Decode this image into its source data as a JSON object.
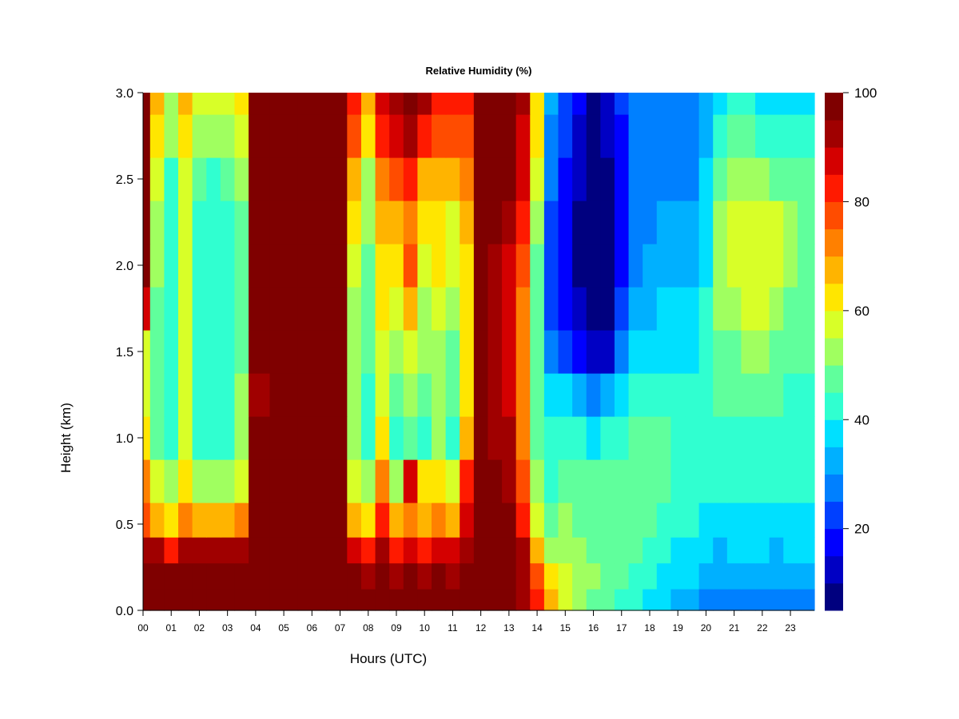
{
  "chart_data": {
    "type": "heatmap",
    "title": "Relative Humidity (%)",
    "xlabel": "Hours (UTC)",
    "ylabel": "Height (km)",
    "xlim": [
      0,
      23.85
    ],
    "ylim": [
      0,
      3.0
    ],
    "x_ticks": [
      "00",
      "01",
      "02",
      "03",
      "04",
      "05",
      "06",
      "07",
      "08",
      "09",
      "10",
      "11",
      "12",
      "13",
      "14",
      "15",
      "16",
      "17",
      "18",
      "19",
      "20",
      "21",
      "22",
      "23"
    ],
    "y_ticks": [
      "0.0",
      "0.5",
      "1.0",
      "1.5",
      "2.0",
      "2.5",
      "3.0"
    ],
    "colorbar": {
      "range": [
        5,
        100
      ],
      "ticks": [
        "20",
        "40",
        "60",
        "80",
        "100"
      ],
      "tick_values": [
        20,
        40,
        60,
        80,
        100
      ],
      "levels": [
        5,
        10,
        15,
        20,
        25,
        30,
        35,
        40,
        45,
        50,
        55,
        60,
        65,
        70,
        75,
        80,
        85,
        90,
        95,
        100
      ],
      "colors": [
        "#00007f",
        "#0000c4",
        "#0000ff",
        "#0040ff",
        "#0080ff",
        "#00b0ff",
        "#00e0ff",
        "#30ffd0",
        "#60ff9c",
        "#a0ff60",
        "#d8ff28",
        "#ffe600",
        "#ffb400",
        "#ff8000",
        "#ff4c00",
        "#ff1a00",
        "#d40000",
        "#a00000",
        "#7f0000"
      ]
    },
    "heights_km": [
      0.05,
      0.2,
      0.35,
      0.5,
      0.75,
      1.0,
      1.25,
      1.5,
      1.75,
      2.0,
      2.25,
      2.5,
      2.75,
      3.0
    ],
    "hours": [
      0.0,
      0.5,
      1.0,
      1.5,
      2.0,
      2.5,
      3.0,
      3.5,
      4.0,
      5.0,
      6.0,
      7.0,
      7.5,
      8.0,
      8.5,
      9.0,
      9.5,
      10.0,
      10.5,
      11.0,
      11.5,
      12.0,
      12.5,
      13.0,
      13.5,
      14.0,
      14.5,
      15.0,
      15.5,
      16.0,
      16.5,
      17.0,
      17.5,
      18.0,
      18.5,
      19.0,
      19.5,
      20.0,
      20.5,
      21.0,
      21.5,
      22.0,
      22.5,
      23.0,
      23.5,
      23.85
    ],
    "values": [
      [
        100,
        100,
        100,
        100,
        100,
        100,
        100,
        100,
        100,
        100,
        100,
        100,
        100,
        100,
        100,
        100,
        100,
        100,
        100,
        100,
        100,
        100,
        100,
        100,
        95,
        85,
        70,
        60,
        55,
        50,
        48,
        45,
        42,
        40,
        38,
        35,
        33,
        30,
        28,
        27,
        27,
        27,
        28,
        30,
        30,
        30
      ],
      [
        100,
        100,
        98,
        100,
        100,
        100,
        100,
        100,
        100,
        100,
        100,
        100,
        100,
        95,
        100,
        95,
        100,
        95,
        100,
        95,
        100,
        100,
        100,
        100,
        95,
        80,
        65,
        60,
        55,
        52,
        50,
        48,
        45,
        42,
        40,
        38,
        36,
        33,
        32,
        33,
        34,
        34,
        33,
        33,
        33,
        33
      ],
      [
        95,
        95,
        85,
        95,
        95,
        95,
        95,
        95,
        100,
        100,
        100,
        100,
        90,
        85,
        95,
        85,
        90,
        85,
        90,
        88,
        95,
        100,
        100,
        100,
        95,
        70,
        55,
        55,
        52,
        50,
        50,
        48,
        46,
        44,
        42,
        40,
        38,
        36,
        35,
        36,
        36,
        36,
        35,
        36,
        36,
        36
      ],
      [
        80,
        70,
        65,
        75,
        70,
        70,
        70,
        75,
        100,
        100,
        100,
        100,
        70,
        65,
        85,
        70,
        75,
        70,
        75,
        70,
        90,
        100,
        100,
        98,
        85,
        60,
        50,
        52,
        50,
        50,
        50,
        48,
        48,
        46,
        45,
        43,
        42,
        40,
        40,
        40,
        40,
        40,
        40,
        40,
        40,
        40
      ],
      [
        75,
        60,
        55,
        65,
        55,
        55,
        55,
        60,
        100,
        100,
        100,
        100,
        60,
        55,
        75,
        55,
        90,
        65,
        65,
        60,
        85,
        100,
        98,
        95,
        80,
        55,
        45,
        50,
        50,
        48,
        48,
        48,
        48,
        46,
        46,
        45,
        44,
        42,
        42,
        42,
        43,
        43,
        42,
        42,
        42,
        42
      ],
      [
        65,
        50,
        45,
        60,
        45,
        45,
        45,
        55,
        100,
        100,
        98,
        98,
        55,
        45,
        65,
        45,
        50,
        42,
        55,
        42,
        70,
        100,
        95,
        92,
        75,
        50,
        42,
        45,
        44,
        40,
        42,
        45,
        46,
        46,
        46,
        45,
        45,
        44,
        44,
        44,
        45,
        45,
        44,
        44,
        44,
        44
      ],
      [
        60,
        50,
        45,
        60,
        45,
        45,
        45,
        55,
        95,
        98,
        98,
        98,
        55,
        45,
        60,
        50,
        55,
        50,
        55,
        50,
        65,
        100,
        95,
        90,
        75,
        50,
        38,
        38,
        32,
        28,
        32,
        40,
        44,
        45,
        44,
        44,
        44,
        44,
        46,
        46,
        46,
        46,
        46,
        45,
        45,
        45
      ],
      [
        60,
        48,
        45,
        60,
        45,
        45,
        45,
        50,
        100,
        100,
        100,
        100,
        55,
        48,
        60,
        55,
        60,
        52,
        55,
        50,
        65,
        100,
        92,
        88,
        75,
        50,
        30,
        25,
        18,
        12,
        15,
        28,
        38,
        40,
        40,
        40,
        40,
        42,
        48,
        50,
        52,
        52,
        50,
        48,
        46,
        46
      ],
      [
        90,
        50,
        45,
        60,
        45,
        45,
        45,
        50,
        100,
        100,
        100,
        100,
        55,
        50,
        65,
        60,
        70,
        55,
        60,
        55,
        65,
        100,
        92,
        88,
        75,
        50,
        25,
        20,
        12,
        8,
        10,
        22,
        32,
        35,
        36,
        36,
        36,
        42,
        52,
        55,
        56,
        56,
        54,
        50,
        48,
        48
      ],
      [
        100,
        55,
        45,
        60,
        45,
        45,
        45,
        50,
        100,
        100,
        100,
        100,
        60,
        50,
        65,
        65,
        80,
        60,
        65,
        58,
        65,
        100,
        95,
        90,
        80,
        50,
        25,
        18,
        10,
        8,
        10,
        18,
        30,
        32,
        34,
        34,
        34,
        40,
        55,
        58,
        58,
        58,
        56,
        52,
        50,
        50
      ],
      [
        100,
        55,
        45,
        60,
        45,
        45,
        45,
        50,
        100,
        100,
        100,
        100,
        62,
        52,
        68,
        70,
        75,
        62,
        65,
        60,
        68,
        100,
        98,
        95,
        85,
        55,
        25,
        18,
        10,
        6,
        10,
        18,
        28,
        30,
        32,
        32,
        32,
        40,
        55,
        58,
        58,
        58,
        56,
        52,
        50,
        50
      ],
      [
        100,
        60,
        45,
        60,
        48,
        45,
        48,
        55,
        100,
        100,
        100,
        100,
        70,
        55,
        72,
        80,
        85,
        70,
        70,
        68,
        72,
        100,
        100,
        100,
        90,
        60,
        28,
        20,
        12,
        6,
        10,
        18,
        28,
        30,
        30,
        30,
        30,
        38,
        50,
        52,
        52,
        52,
        50,
        48,
        46,
        46
      ],
      [
        100,
        65,
        52,
        65,
        55,
        55,
        55,
        60,
        100,
        100,
        100,
        100,
        80,
        65,
        82,
        90,
        95,
        85,
        80,
        78,
        80,
        100,
        100,
        100,
        90,
        65,
        30,
        22,
        15,
        8,
        12,
        20,
        28,
        30,
        30,
        30,
        30,
        35,
        45,
        46,
        46,
        45,
        44,
        42,
        42,
        42
      ],
      [
        100,
        68,
        55,
        68,
        60,
        60,
        60,
        62,
        100,
        100,
        100,
        100,
        85,
        70,
        88,
        95,
        100,
        92,
        85,
        85,
        85,
        100,
        100,
        100,
        92,
        65,
        32,
        24,
        16,
        10,
        14,
        22,
        28,
        30,
        30,
        30,
        30,
        34,
        40,
        42,
        42,
        40,
        38,
        36,
        36,
        36
      ]
    ]
  }
}
